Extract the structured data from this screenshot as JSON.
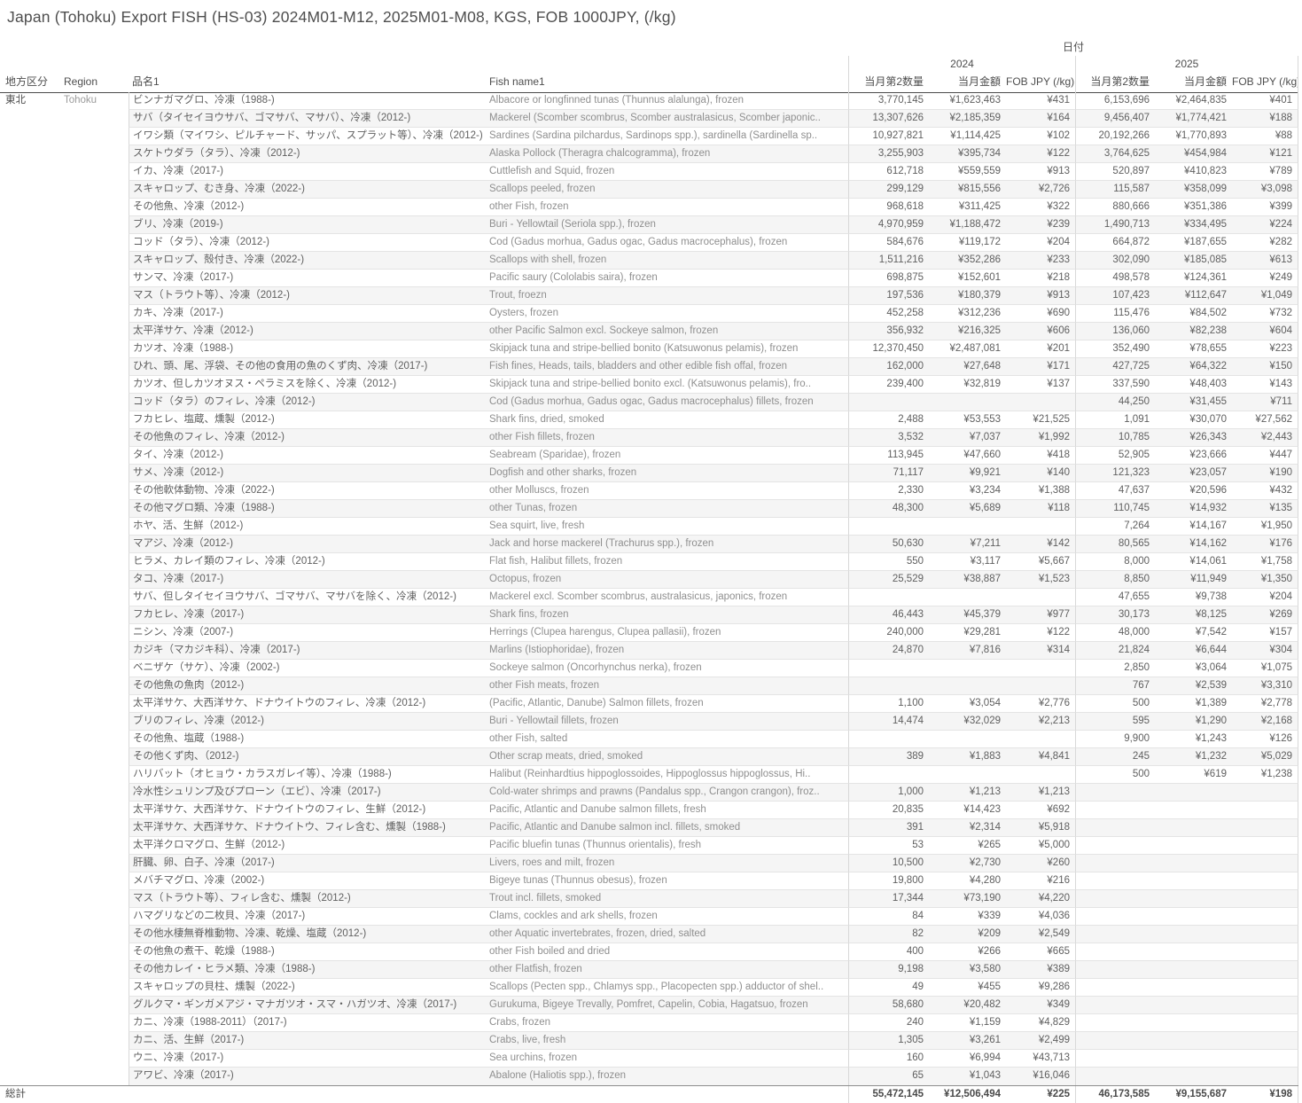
{
  "title": "Japan (Tohoku) Export FISH (HS-03) 2024M01-M12, 2025M01-M08, KGS, FOB 1000JPY, (/kg)",
  "chart_data": {
    "type": "table",
    "title": "Japan (Tohoku) Export FISH (HS-03) 2024M01-M12, 2025M01-M08, KGS, FOB 1000JPY, (/kg)",
    "column_dimension": "日付",
    "years": [
      "2024",
      "2025"
    ],
    "row_dimension": [
      "地方区分",
      "Region",
      "品名1",
      "Fish name1"
    ],
    "measures": [
      "当月第2数量",
      "当月金額",
      "FOB JPY (/kg)"
    ],
    "region": {
      "jp": "東北",
      "en": "Tohoku"
    },
    "rows": [
      {
        "jp": "ビンナガマグロ、冷凍（1988-)",
        "en": "Albacore or longfinned tunas (Thunnus alalunga), frozen",
        "y2024": [
          "3,770,145",
          "¥1,623,463",
          "¥431"
        ],
        "y2025": [
          "6,153,696",
          "¥2,464,835",
          "¥401"
        ]
      },
      {
        "jp": "サバ（タイセイヨウサバ、ゴマサバ、マサバ）、冷凍（2012-)",
        "en": "Mackerel (Scomber scombrus, Scomber australasicus, Scomber japonic..",
        "y2024": [
          "13,307,626",
          "¥2,185,359",
          "¥164"
        ],
        "y2025": [
          "9,456,407",
          "¥1,774,421",
          "¥188"
        ]
      },
      {
        "jp": "イワシ類（マイワシ、ピルチャード、サッパ、スプラット等）、冷凍（2012-)",
        "en": "Sardines (Sardina pilchardus, Sardinops spp.), sardinella (Sardinella sp..",
        "y2024": [
          "10,927,821",
          "¥1,114,425",
          "¥102"
        ],
        "y2025": [
          "20,192,266",
          "¥1,770,893",
          "¥88"
        ]
      },
      {
        "jp": "スケトウダラ（タラ）、冷凍（2012-)",
        "en": "Alaska Pollock (Theragra chalcogramma), frozen",
        "y2024": [
          "3,255,903",
          "¥395,734",
          "¥122"
        ],
        "y2025": [
          "3,764,625",
          "¥454,984",
          "¥121"
        ]
      },
      {
        "jp": "イカ、冷凍（2017-)",
        "en": "Cuttlefish and Squid, frozen",
        "y2024": [
          "612,718",
          "¥559,559",
          "¥913"
        ],
        "y2025": [
          "520,897",
          "¥410,823",
          "¥789"
        ]
      },
      {
        "jp": "スキャロップ、むき身、冷凍（2022-)",
        "en": "Scallops peeled, frozen",
        "y2024": [
          "299,129",
          "¥815,556",
          "¥2,726"
        ],
        "y2025": [
          "115,587",
          "¥358,099",
          "¥3,098"
        ]
      },
      {
        "jp": "その他魚、冷凍（2012-)",
        "en": "other Fish, frozen",
        "y2024": [
          "968,618",
          "¥311,425",
          "¥322"
        ],
        "y2025": [
          "880,666",
          "¥351,386",
          "¥399"
        ]
      },
      {
        "jp": "ブリ、冷凍（2019-)",
        "en": "Buri - Yellowtail (Seriola spp.), frozen",
        "y2024": [
          "4,970,959",
          "¥1,188,472",
          "¥239"
        ],
        "y2025": [
          "1,490,713",
          "¥334,495",
          "¥224"
        ]
      },
      {
        "jp": "コッド（タラ）、冷凍（2012-)",
        "en": "Cod (Gadus morhua, Gadus ogac, Gadus macrocephalus), frozen",
        "y2024": [
          "584,676",
          "¥119,172",
          "¥204"
        ],
        "y2025": [
          "664,872",
          "¥187,655",
          "¥282"
        ]
      },
      {
        "jp": "スキャロップ、殻付き、冷凍（2022-)",
        "en": "Scallops with shell, frozen",
        "y2024": [
          "1,511,216",
          "¥352,286",
          "¥233"
        ],
        "y2025": [
          "302,090",
          "¥185,085",
          "¥613"
        ]
      },
      {
        "jp": "サンマ、冷凍（2017-)",
        "en": "Pacific saury (Cololabis saira), frozen",
        "y2024": [
          "698,875",
          "¥152,601",
          "¥218"
        ],
        "y2025": [
          "498,578",
          "¥124,361",
          "¥249"
        ]
      },
      {
        "jp": "マス（トラウト等）、冷凍（2012-)",
        "en": "Trout, froezn",
        "y2024": [
          "197,536",
          "¥180,379",
          "¥913"
        ],
        "y2025": [
          "107,423",
          "¥112,647",
          "¥1,049"
        ]
      },
      {
        "jp": "カキ、冷凍（2017-)",
        "en": "Oysters, frozen",
        "y2024": [
          "452,258",
          "¥312,236",
          "¥690"
        ],
        "y2025": [
          "115,476",
          "¥84,502",
          "¥732"
        ]
      },
      {
        "jp": "太平洋サケ、冷凍（2012-)",
        "en": "other Pacific Salmon excl. Sockeye salmon, frozen",
        "y2024": [
          "356,932",
          "¥216,325",
          "¥606"
        ],
        "y2025": [
          "136,060",
          "¥82,238",
          "¥604"
        ]
      },
      {
        "jp": "カツオ、冷凍（1988-)",
        "en": "Skipjack tuna and stripe-bellied bonito (Katsuwonus pelamis), frozen",
        "y2024": [
          "12,370,450",
          "¥2,487,081",
          "¥201"
        ],
        "y2025": [
          "352,490",
          "¥78,655",
          "¥223"
        ]
      },
      {
        "jp": "ひれ、頭、尾、浮袋、その他の食用の魚のくず肉、冷凍（2017-)",
        "en": "Fish fines, Heads, tails, bladders and other edible fish offal, frozen",
        "y2024": [
          "162,000",
          "¥27,648",
          "¥171"
        ],
        "y2025": [
          "427,725",
          "¥64,322",
          "¥150"
        ]
      },
      {
        "jp": "カツオ、但しカツオヌス・ペラミスを除く、冷凍（2012-)",
        "en": "Skipjack tuna and stripe-bellied bonito excl. (Katsuwonus pelamis), fro..",
        "y2024": [
          "239,400",
          "¥32,819",
          "¥137"
        ],
        "y2025": [
          "337,590",
          "¥48,403",
          "¥143"
        ]
      },
      {
        "jp": "コッド（タラ）のフィレ、冷凍（2012-)",
        "en": "Cod (Gadus morhua, Gadus ogac, Gadus macrocephalus) fillets, frozen",
        "y2024": [
          "",
          "",
          ""
        ],
        "y2025": [
          "44,250",
          "¥31,455",
          "¥711"
        ]
      },
      {
        "jp": "フカヒレ、塩蔵、燻製（2012-)",
        "en": "Shark fins, dried, smoked",
        "y2024": [
          "2,488",
          "¥53,553",
          "¥21,525"
        ],
        "y2025": [
          "1,091",
          "¥30,070",
          "¥27,562"
        ]
      },
      {
        "jp": "その他魚のフィレ、冷凍（2012-)",
        "en": "other Fish fillets, frozen",
        "y2024": [
          "3,532",
          "¥7,037",
          "¥1,992"
        ],
        "y2025": [
          "10,785",
          "¥26,343",
          "¥2,443"
        ]
      },
      {
        "jp": "タイ、冷凍（2012-)",
        "en": "Seabream (Sparidae), frozen",
        "y2024": [
          "113,945",
          "¥47,660",
          "¥418"
        ],
        "y2025": [
          "52,905",
          "¥23,666",
          "¥447"
        ]
      },
      {
        "jp": "サメ、冷凍（2012-)",
        "en": "Dogfish and other sharks, frozen",
        "y2024": [
          "71,117",
          "¥9,921",
          "¥140"
        ],
        "y2025": [
          "121,323",
          "¥23,057",
          "¥190"
        ]
      },
      {
        "jp": "その他軟体動物、冷凍（2022-)",
        "en": "other Molluscs, frozen",
        "y2024": [
          "2,330",
          "¥3,234",
          "¥1,388"
        ],
        "y2025": [
          "47,637",
          "¥20,596",
          "¥432"
        ]
      },
      {
        "jp": "その他マグロ類、冷凍（1988-)",
        "en": "other Tunas, frozen",
        "y2024": [
          "48,300",
          "¥5,689",
          "¥118"
        ],
        "y2025": [
          "110,745",
          "¥14,932",
          "¥135"
        ]
      },
      {
        "jp": "ホヤ、活、生鮮（2012-)",
        "en": "Sea squirt, live, fresh",
        "y2024": [
          "",
          "",
          ""
        ],
        "y2025": [
          "7,264",
          "¥14,167",
          "¥1,950"
        ]
      },
      {
        "jp": "マアジ、冷凍（2012-)",
        "en": "Jack and horse mackerel (Trachurus spp.), frozen",
        "y2024": [
          "50,630",
          "¥7,211",
          "¥142"
        ],
        "y2025": [
          "80,565",
          "¥14,162",
          "¥176"
        ]
      },
      {
        "jp": "ヒラメ、カレイ類のフィレ、冷凍（2012-)",
        "en": "Flat fish, Halibut fillets, frozen",
        "y2024": [
          "550",
          "¥3,117",
          "¥5,667"
        ],
        "y2025": [
          "8,000",
          "¥14,061",
          "¥1,758"
        ]
      },
      {
        "jp": "タコ、冷凍（2017-)",
        "en": "Octopus, frozen",
        "y2024": [
          "25,529",
          "¥38,887",
          "¥1,523"
        ],
        "y2025": [
          "8,850",
          "¥11,949",
          "¥1,350"
        ]
      },
      {
        "jp": "サバ、但しタイセイヨウサバ、ゴマサバ、マサバを除く、冷凍（2012-)",
        "en": "Mackerel excl. Scomber scombrus, australasicus, japonics,  frozen",
        "y2024": [
          "",
          "",
          ""
        ],
        "y2025": [
          "47,655",
          "¥9,738",
          "¥204"
        ]
      },
      {
        "jp": "フカヒレ、冷凍（2017-)",
        "en": "Shark fins, frozen",
        "y2024": [
          "46,443",
          "¥45,379",
          "¥977"
        ],
        "y2025": [
          "30,173",
          "¥8,125",
          "¥269"
        ]
      },
      {
        "jp": "ニシン、冷凍（2007-)",
        "en": "Herrings (Clupea harengus, Clupea pallasii), frozen",
        "y2024": [
          "240,000",
          "¥29,281",
          "¥122"
        ],
        "y2025": [
          "48,000",
          "¥7,542",
          "¥157"
        ]
      },
      {
        "jp": "カジキ（マカジキ科）、冷凍（2017-)",
        "en": "Marlins (Istiophoridae), frozen",
        "y2024": [
          "24,870",
          "¥7,816",
          "¥314"
        ],
        "y2025": [
          "21,824",
          "¥6,644",
          "¥304"
        ]
      },
      {
        "jp": "ベニザケ（サケ）、冷凍（2002-)",
        "en": "Sockeye salmon (Oncorhynchus nerka), frozen",
        "y2024": [
          "",
          "",
          ""
        ],
        "y2025": [
          "2,850",
          "¥3,064",
          "¥1,075"
        ]
      },
      {
        "jp": "その他魚の魚肉（2012-)",
        "en": "other Fish meats, frozen",
        "y2024": [
          "",
          "",
          ""
        ],
        "y2025": [
          "767",
          "¥2,539",
          "¥3,310"
        ]
      },
      {
        "jp": "太平洋サケ、大西洋サケ、ドナウイトウのフィレ、冷凍（2012-)",
        "en": "(Pacific, Atlantic, Danube) Salmon fillets, frozen",
        "y2024": [
          "1,100",
          "¥3,054",
          "¥2,776"
        ],
        "y2025": [
          "500",
          "¥1,389",
          "¥2,778"
        ]
      },
      {
        "jp": "ブリのフィレ、冷凍（2012-)",
        "en": "Buri - Yellowtail fillets, frozen",
        "y2024": [
          "14,474",
          "¥32,029",
          "¥2,213"
        ],
        "y2025": [
          "595",
          "¥1,290",
          "¥2,168"
        ]
      },
      {
        "jp": "その他魚、塩蔵（1988-)",
        "en": "other Fish, salted",
        "y2024": [
          "",
          "",
          ""
        ],
        "y2025": [
          "9,900",
          "¥1,243",
          "¥126"
        ]
      },
      {
        "jp": "その他くず肉、（2012-)",
        "en": "Other scrap meats, dried, smoked",
        "y2024": [
          "389",
          "¥1,883",
          "¥4,841"
        ],
        "y2025": [
          "245",
          "¥1,232",
          "¥5,029"
        ]
      },
      {
        "jp": "ハリバット（オヒョウ・カラスガレイ等）、冷凍（1988-)",
        "en": "Halibut (Reinhardtius hippoglossoides, Hippoglossus hippoglossus, Hi..",
        "y2024": [
          "",
          "",
          ""
        ],
        "y2025": [
          "500",
          "¥619",
          "¥1,238"
        ]
      },
      {
        "jp": "冷水性シュリンプ及びプローン（エビ）、冷凍（2017-)",
        "en": "Cold-water shrimps and prawns (Pandalus spp., Crangon crangon), froz..",
        "y2024": [
          "1,000",
          "¥1,213",
          "¥1,213"
        ],
        "y2025": [
          "",
          "",
          ""
        ]
      },
      {
        "jp": "太平洋サケ、大西洋サケ、ドナウイトウのフィレ、生鮮（2012-)",
        "en": "Pacific, Atlantic and Danube salmon fillets, fresh",
        "y2024": [
          "20,835",
          "¥14,423",
          "¥692"
        ],
        "y2025": [
          "",
          "",
          ""
        ]
      },
      {
        "jp": "太平洋サケ、大西洋サケ、ドナウイトウ、フィレ含む、燻製（1988-)",
        "en": "Pacific, Atlantic and Danube salmon incl. fillets, smoked",
        "y2024": [
          "391",
          "¥2,314",
          "¥5,918"
        ],
        "y2025": [
          "",
          "",
          ""
        ]
      },
      {
        "jp": "太平洋クロマグロ、生鮮（2012-)",
        "en": "Pacific bluefin tunas (Thunnus orientalis), fresh",
        "y2024": [
          "53",
          "¥265",
          "¥5,000"
        ],
        "y2025": [
          "",
          "",
          ""
        ]
      },
      {
        "jp": "肝臓、卵、白子、冷凍（2017-)",
        "en": "Livers, roes and milt, frozen",
        "y2024": [
          "10,500",
          "¥2,730",
          "¥260"
        ],
        "y2025": [
          "",
          "",
          ""
        ]
      },
      {
        "jp": "メバチマグロ、冷凍（2002-)",
        "en": "Bigeye tunas (Thunnus obesus), frozen",
        "y2024": [
          "19,800",
          "¥4,280",
          "¥216"
        ],
        "y2025": [
          "",
          "",
          ""
        ]
      },
      {
        "jp": "マス（トラウト等）、フィレ含む、燻製（2012-)",
        "en": "Trout incl. fillets, smoked",
        "y2024": [
          "17,344",
          "¥73,190",
          "¥4,220"
        ],
        "y2025": [
          "",
          "",
          ""
        ]
      },
      {
        "jp": "ハマグリなどの二枚貝、冷凍（2017-)",
        "en": "Clams, cockles and ark shells, frozen",
        "y2024": [
          "84",
          "¥339",
          "¥4,036"
        ],
        "y2025": [
          "",
          "",
          ""
        ]
      },
      {
        "jp": "その他水棲無脊椎動物、冷凍、乾燥、塩蔵（2012-)",
        "en": "other Aquatic invertebrates, frozen, dried, salted",
        "y2024": [
          "82",
          "¥209",
          "¥2,549"
        ],
        "y2025": [
          "",
          "",
          ""
        ]
      },
      {
        "jp": "その他魚の煮干、乾燥（1988-)",
        "en": "other Fish boiled and dried",
        "y2024": [
          "400",
          "¥266",
          "¥665"
        ],
        "y2025": [
          "",
          "",
          ""
        ]
      },
      {
        "jp": "その他カレイ・ヒラメ類、冷凍（1988-)",
        "en": "other Flatfish, frozen",
        "y2024": [
          "9,198",
          "¥3,580",
          "¥389"
        ],
        "y2025": [
          "",
          "",
          ""
        ]
      },
      {
        "jp": "スキャロップの貝柱、燻製（2022-)",
        "en": "Scallops (Pecten spp., Chlamys spp., Placopecten spp.) adductor of shel..",
        "y2024": [
          "49",
          "¥455",
          "¥9,286"
        ],
        "y2025": [
          "",
          "",
          ""
        ]
      },
      {
        "jp": "グルクマ・ギンガメアジ・マナガツオ・スマ・ハガツオ、冷凍（2017-)",
        "en": "Gurukuma, Bigeye Trevally, Pomfret, Capelin, Cobia, Hagatsuo, frozen",
        "y2024": [
          "58,680",
          "¥20,482",
          "¥349"
        ],
        "y2025": [
          "",
          "",
          ""
        ]
      },
      {
        "jp": "カニ、冷凍（1988-2011）（2017-)",
        "en": "Crabs, frozen",
        "y2024": [
          "240",
          "¥1,159",
          "¥4,829"
        ],
        "y2025": [
          "",
          "",
          ""
        ]
      },
      {
        "jp": "カニ、活、生鮮（2017-)",
        "en": "Crabs, live, fresh",
        "y2024": [
          "1,305",
          "¥3,261",
          "¥2,499"
        ],
        "y2025": [
          "",
          "",
          ""
        ]
      },
      {
        "jp": "ウニ、冷凍（2017-)",
        "en": "Sea urchins, frozen",
        "y2024": [
          "160",
          "¥6,994",
          "¥43,713"
        ],
        "y2025": [
          "",
          "",
          ""
        ]
      },
      {
        "jp": "アワビ、冷凍（2017-)",
        "en": "Abalone (Haliotis spp.), frozen",
        "y2024": [
          "65",
          "¥1,043",
          "¥16,046"
        ],
        "y2025": [
          "",
          "",
          ""
        ]
      }
    ],
    "total": {
      "label": "総計",
      "y2024": [
        "55,472,145",
        "¥12,506,494",
        "¥225"
      ],
      "y2025": [
        "46,173,585",
        "¥9,155,687",
        "¥198"
      ]
    }
  },
  "colors": {
    "zebra": "#f5f5f5",
    "row_border": "#e4e4e4",
    "column_border": "#d8d8d8",
    "header_underline": "#4a4a4a",
    "total_border": "#8c8c8c",
    "text_primary": "#5f5f5f",
    "text_secondary": "#8f8f8f"
  }
}
